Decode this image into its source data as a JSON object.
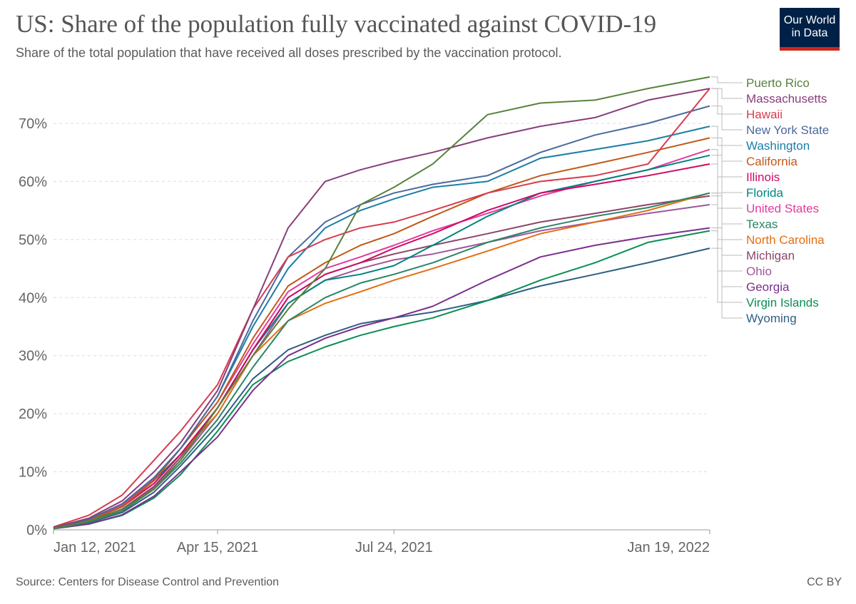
{
  "title": "US: Share of the population fully vaccinated against COVID-19",
  "subtitle": "Share of the total population that have received all doses prescribed by the vaccination protocol.",
  "logo": {
    "line1": "Our World",
    "line2": "in Data"
  },
  "footer": {
    "source": "Source: Centers for Disease Control and Prevention",
    "license": "CC BY"
  },
  "chart_data": {
    "type": "line",
    "title": "US: Share of the population fully vaccinated against COVID-19",
    "subtitle": "Share of the total population that have received all doses prescribed by the vaccination protocol.",
    "x_ticks": [
      "Jan 12, 2021",
      "Apr 15, 2021",
      "Jul 24, 2021",
      "Jan 19, 2022"
    ],
    "y_ticks": [
      "0%",
      "10%",
      "20%",
      "30%",
      "40%",
      "50%",
      "60%",
      "70%"
    ],
    "ylim": [
      0,
      78
    ],
    "xlim": [
      "2021-01-12",
      "2022-01-19"
    ],
    "y_unit": "%",
    "grid": "horizontal dashed",
    "legend_position": "right, line-end labels",
    "x": [
      "2021-01-12",
      "2021-02-01",
      "2021-02-20",
      "2021-03-10",
      "2021-03-25",
      "2021-04-15",
      "2021-05-05",
      "2021-05-25",
      "2021-06-15",
      "2021-07-05",
      "2021-07-24",
      "2021-08-15",
      "2021-09-15",
      "2021-10-15",
      "2021-11-15",
      "2021-12-15",
      "2022-01-19"
    ],
    "series": [
      {
        "name": "Puerto Rico",
        "color": "#58823a",
        "values": [
          0.3,
          1.5,
          3.5,
          7,
          12,
          21,
          30,
          38,
          45,
          56,
          59,
          63,
          71.5,
          73.5,
          74,
          76,
          78
        ]
      },
      {
        "name": "Massachusetts",
        "color": "#883e79",
        "values": [
          0.4,
          2,
          5,
          10,
          15,
          24,
          38,
          52,
          60,
          62,
          63.5,
          65,
          67.5,
          69.5,
          71,
          74,
          76
        ]
      },
      {
        "name": "Hawaii",
        "color": "#d73c50",
        "values": [
          0.5,
          2.5,
          6,
          12,
          17,
          25,
          38,
          47,
          50,
          52,
          53,
          55,
          58,
          60,
          61,
          63,
          76
        ]
      },
      {
        "name": "New York State",
        "color": "#4c6a9c",
        "values": [
          0.3,
          1.8,
          4.5,
          9,
          14,
          23,
          36,
          47,
          53,
          56,
          58,
          59.5,
          61,
          65,
          68,
          70,
          73
        ]
      },
      {
        "name": "Washington",
        "color": "#1b7ea6",
        "values": [
          0.3,
          1.8,
          4.5,
          9,
          14,
          23,
          35,
          45,
          52,
          55,
          57,
          59,
          60,
          64,
          65.5,
          67,
          69.5
        ]
      },
      {
        "name": "California",
        "color": "#c05917",
        "values": [
          0.3,
          1.6,
          4,
          8.5,
          14,
          22,
          33,
          42,
          46,
          49,
          51,
          54,
          58,
          61,
          63,
          65,
          67.5
        ]
      },
      {
        "name": "Illinois",
        "color": "#cf0a66",
        "values": [
          0.3,
          1.5,
          4,
          8,
          13,
          21,
          31,
          40,
          44,
          46,
          48.5,
          51,
          55,
          58,
          59.5,
          61,
          63
        ]
      },
      {
        "name": "Florida",
        "color": "#00847e",
        "values": [
          0.3,
          1.6,
          4,
          8.5,
          13,
          21,
          31,
          39,
          43,
          44,
          45.5,
          49,
          54,
          58,
          60,
          62,
          64.5
        ]
      },
      {
        "name": "United States",
        "color": "#e33a9c",
        "values": [
          0.4,
          1.7,
          4.2,
          8.8,
          14,
          22,
          32,
          41,
          45,
          47,
          49,
          51.5,
          54.5,
          57.5,
          60,
          62,
          65.5
        ]
      },
      {
        "name": "Texas",
        "color": "#2c8465",
        "values": [
          0.2,
          1.3,
          3.2,
          7,
          11.5,
          19,
          28,
          36,
          40,
          42.5,
          44,
          46,
          49.5,
          52,
          54,
          55.5,
          58
        ]
      },
      {
        "name": "North Carolina",
        "color": "#e56e11",
        "values": [
          0.3,
          1.6,
          4,
          8,
          13,
          20,
          30,
          36,
          39,
          41,
          43,
          45,
          48,
          51,
          53,
          55,
          58
        ]
      },
      {
        "name": "Michigan",
        "color": "#8c4569",
        "values": [
          0.3,
          1.4,
          3.6,
          7.5,
          12.5,
          21,
          31,
          40,
          44,
          46,
          47.5,
          49,
          51,
          53,
          54.5,
          56,
          57.5
        ]
      },
      {
        "name": "Ohio",
        "color": "#a2559c",
        "values": [
          0.3,
          1.4,
          3.5,
          7.3,
          12,
          20,
          30,
          39,
          43,
          45,
          46.5,
          47.5,
          49.5,
          51.5,
          53,
          54.5,
          56
        ]
      },
      {
        "name": "Georgia",
        "color": "#7b2f8f",
        "values": [
          0.2,
          1,
          2.6,
          5.8,
          10,
          16,
          24,
          30,
          33,
          35,
          36.5,
          38.5,
          43,
          47,
          49,
          50.5,
          52
        ]
      },
      {
        "name": "Virgin Islands",
        "color": "#0a8e54",
        "values": [
          0.2,
          1,
          2.5,
          5.5,
          9.5,
          17,
          25,
          29,
          31.5,
          33.5,
          35,
          36.5,
          39.5,
          43,
          46,
          49.5,
          51.5
        ]
      },
      {
        "name": "Wyoming",
        "color": "#2e5f84",
        "values": [
          0.2,
          1.2,
          3,
          6.5,
          11,
          18,
          26,
          31,
          33.5,
          35.5,
          36.5,
          37.5,
          39.5,
          42,
          44,
          46,
          48.5
        ]
      }
    ]
  }
}
